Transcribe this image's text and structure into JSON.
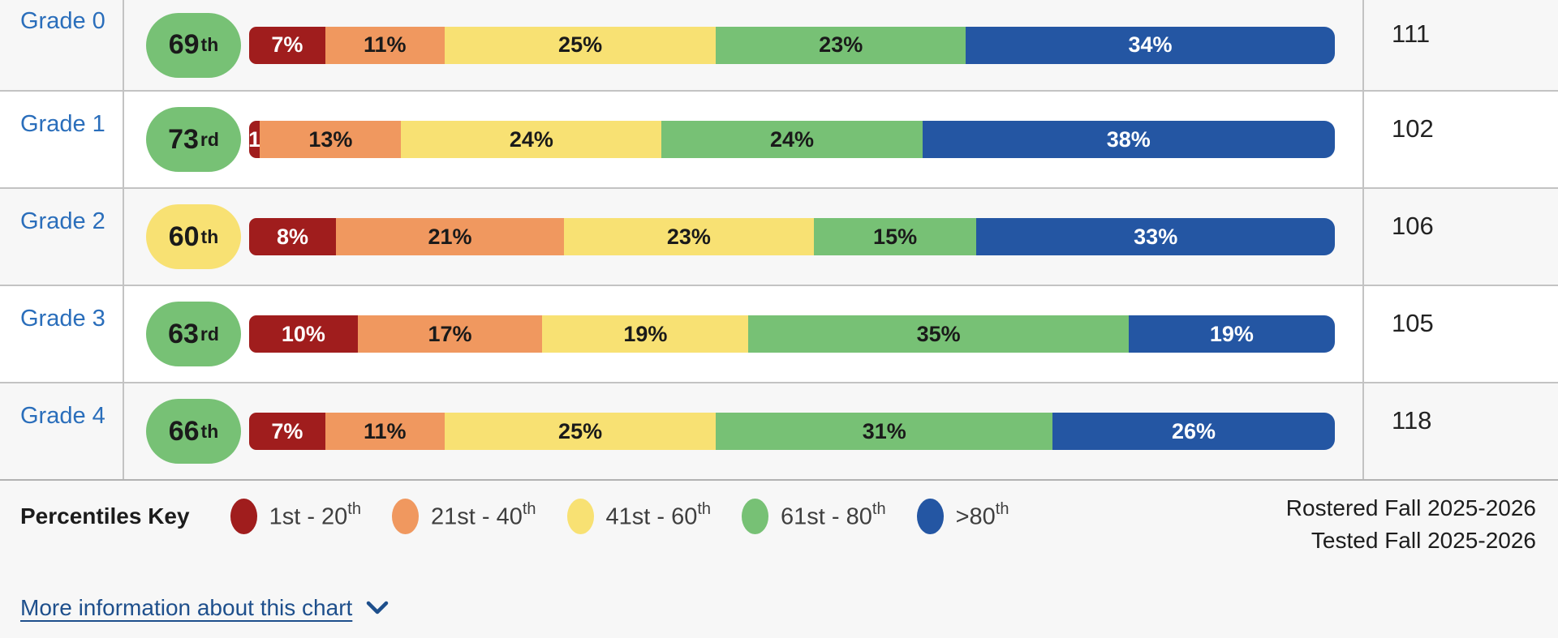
{
  "chart_data": {
    "type": "bar",
    "variant": "horizontal-stacked",
    "categories": [
      "Grade 0",
      "Grade 1",
      "Grade 2",
      "Grade 3",
      "Grade 4"
    ],
    "series": [
      {
        "name": "1st - 20th",
        "color": "#a01d1d",
        "values": [
          7,
          1,
          8,
          10,
          7
        ]
      },
      {
        "name": "21st - 40th",
        "color": "#f0985f",
        "values": [
          11,
          13,
          21,
          17,
          11
        ]
      },
      {
        "name": "41st - 60th",
        "color": "#f8e173",
        "values": [
          25,
          24,
          23,
          19,
          25
        ]
      },
      {
        "name": "61st - 80th",
        "color": "#77c175",
        "values": [
          23,
          24,
          15,
          35,
          31
        ]
      },
      {
        "name": ">80th",
        "color": "#2456a3",
        "values": [
          34,
          38,
          33,
          19,
          26
        ]
      }
    ],
    "median_percentiles": [
      "69th",
      "73rd",
      "60th",
      "63rd",
      "66th"
    ],
    "counts": [
      111,
      102,
      106,
      105,
      118
    ],
    "legend_title": "Percentiles Key",
    "legend_position": "bottom",
    "xlim": [
      0,
      100
    ],
    "grid": false
  },
  "table": {
    "rows": [
      {
        "grade": "Grade 0",
        "percentile": "69",
        "suffix": "th",
        "band": "band-green",
        "count": "111",
        "segments": [
          {
            "label": "7%",
            "value": 7
          },
          {
            "label": "11%",
            "value": 11
          },
          {
            "label": "25%",
            "value": 25
          },
          {
            "label": "23%",
            "value": 23
          },
          {
            "label": "34%",
            "value": 34
          }
        ]
      },
      {
        "grade": "Grade 1",
        "percentile": "73",
        "suffix": "rd",
        "band": "band-green",
        "count": "102",
        "segments": [
          {
            "label": "1",
            "value": 1
          },
          {
            "label": "13%",
            "value": 13
          },
          {
            "label": "24%",
            "value": 24
          },
          {
            "label": "24%",
            "value": 24
          },
          {
            "label": "38%",
            "value": 38
          }
        ]
      },
      {
        "grade": "Grade 2",
        "percentile": "60",
        "suffix": "th",
        "band": "band-yellow",
        "count": "106",
        "segments": [
          {
            "label": "8%",
            "value": 8
          },
          {
            "label": "21%",
            "value": 21
          },
          {
            "label": "23%",
            "value": 23
          },
          {
            "label": "15%",
            "value": 15
          },
          {
            "label": "33%",
            "value": 33
          }
        ]
      },
      {
        "grade": "Grade 3",
        "percentile": "63",
        "suffix": "rd",
        "band": "band-green",
        "count": "105",
        "segments": [
          {
            "label": "10%",
            "value": 10
          },
          {
            "label": "17%",
            "value": 17
          },
          {
            "label": "19%",
            "value": 19
          },
          {
            "label": "35%",
            "value": 35
          },
          {
            "label": "19%",
            "value": 19
          }
        ]
      },
      {
        "grade": "Grade 4",
        "percentile": "66",
        "suffix": "th",
        "band": "band-green",
        "count": "118",
        "segments": [
          {
            "label": "7%",
            "value": 7
          },
          {
            "label": "11%",
            "value": 11
          },
          {
            "label": "25%",
            "value": 25
          },
          {
            "label": "31%",
            "value": 31
          },
          {
            "label": "26%",
            "value": 26
          }
        ]
      }
    ]
  },
  "legend": {
    "title": "Percentiles Key",
    "items": [
      {
        "range": "1st - 20",
        "sup": "th",
        "color": "#a01d1d"
      },
      {
        "range": "21st - 40",
        "sup": "th",
        "color": "#f0985f"
      },
      {
        "range": "41st - 60",
        "sup": "th",
        "color": "#f8e173"
      },
      {
        "range": "61st - 80",
        "sup": "th",
        "color": "#77c175"
      },
      {
        "range": ">80",
        "sup": "th",
        "color": "#2456a3"
      }
    ]
  },
  "footer": {
    "rostered": "Rostered Fall 2025-2026",
    "tested": "Tested Fall 2025-2026"
  },
  "more_info": {
    "label": "More information about this chart"
  },
  "colors": {
    "grade_link": "#2a6ebb",
    "more_info_link": "#1e4f8c",
    "row_alt_bg": "#ffffff",
    "row_bg": "#f7f7f7",
    "border": "#c3c3c3"
  }
}
